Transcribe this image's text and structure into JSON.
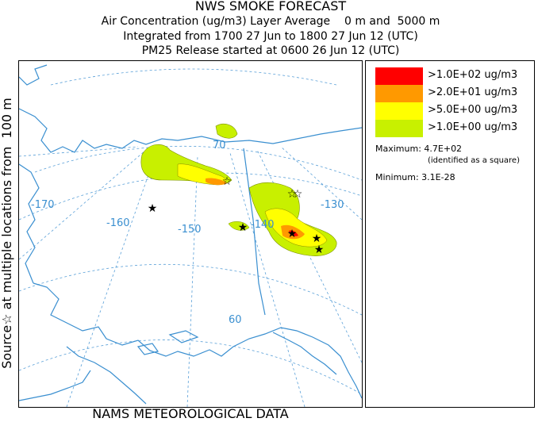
{
  "header": {
    "title": "NWS SMOKE FORECAST",
    "line2": "Air Concentration (ug/m3) Layer Average    0 m and  5000 m",
    "line3": "Integrated from 1700 27 Jun to 1800 27 Jun 12 (UTC)",
    "line4": "PM25 Release started at 0600 26 Jun 12 (UTC)"
  },
  "side_label": "Source☆ at multiple locations from  100 m",
  "footer": "NAMS METEOROLOGICAL DATA",
  "map": {
    "graticule_labels": {
      "lon_m170": "-170",
      "lon_m160": "-160",
      "lon_m150": "-150",
      "lon_m140": "-140",
      "lon_m130": "-130",
      "lat_70": "70",
      "lat_60": "60"
    },
    "colors": {
      "graticule": "#5aa0d8",
      "coast": "#3a8fd0",
      "plume_green": "#c8f000",
      "plume_yellow": "#ffff00",
      "plume_orange": "#ff9900",
      "plume_red": "#ff0000"
    }
  },
  "legend": {
    "items": [
      {
        "label": ">1.0E+02 ug/m3",
        "color": "#ff0000"
      },
      {
        "label": ">2.0E+01 ug/m3",
        "color": "#ff9900"
      },
      {
        "label": ">5.0E+00 ug/m3",
        "color": "#ffff00"
      },
      {
        "label": ">1.0E+00 ug/m3",
        "color": "#c8f000"
      }
    ],
    "maximum_label": "Maximum: 4.7E+02",
    "maximum_note": "(identified as a square)",
    "minimum_label": "Minimum: 3.1E-28"
  }
}
